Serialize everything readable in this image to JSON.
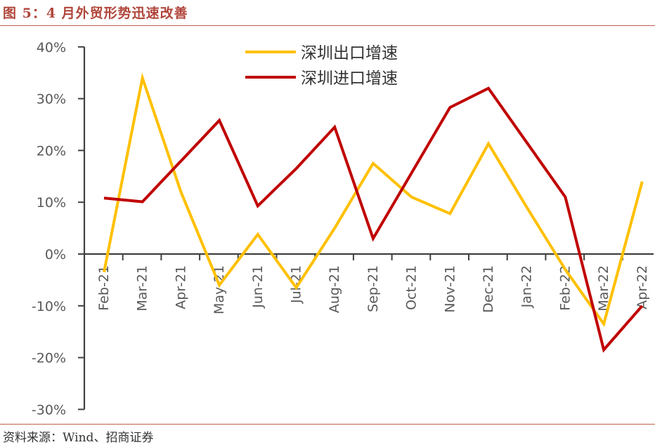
{
  "figure": {
    "title": "图 5：4 月外贸形势迅速改善",
    "source": "资料来源：Wind、招商证券"
  },
  "chart_data": {
    "type": "line",
    "x": [
      "Feb-21",
      "Mar-21",
      "Apr-21",
      "May-21",
      "Jun-21",
      "Jul-21",
      "Aug-21",
      "Sep-21",
      "Oct-21",
      "Nov-21",
      "Dec-21",
      "Jan-22",
      "Feb-22",
      "Mar-22",
      "Apr-22"
    ],
    "yticks": [
      "40%",
      "30%",
      "20%",
      "10%",
      "0%",
      "-10%",
      "-20%",
      "-30%"
    ],
    "ylim": [
      -30,
      40
    ],
    "grid": false,
    "legend_position": "top",
    "series": [
      {
        "name": "深圳出口增速",
        "color": "#ffc000",
        "values": [
          -3.5,
          34.0,
          12.0,
          -6.0,
          3.8,
          -6.5,
          5.0,
          17.5,
          11.0,
          7.8,
          21.3,
          9.0,
          -3.0,
          -13.5,
          14.0
        ]
      },
      {
        "name": "深圳进口增速",
        "color": "#c00000",
        "values": [
          10.8,
          10.1,
          null,
          25.8,
          9.3,
          16.5,
          24.5,
          3.0,
          null,
          28.3,
          32.0,
          null,
          11.0,
          -18.5,
          -10.0
        ]
      }
    ]
  }
}
